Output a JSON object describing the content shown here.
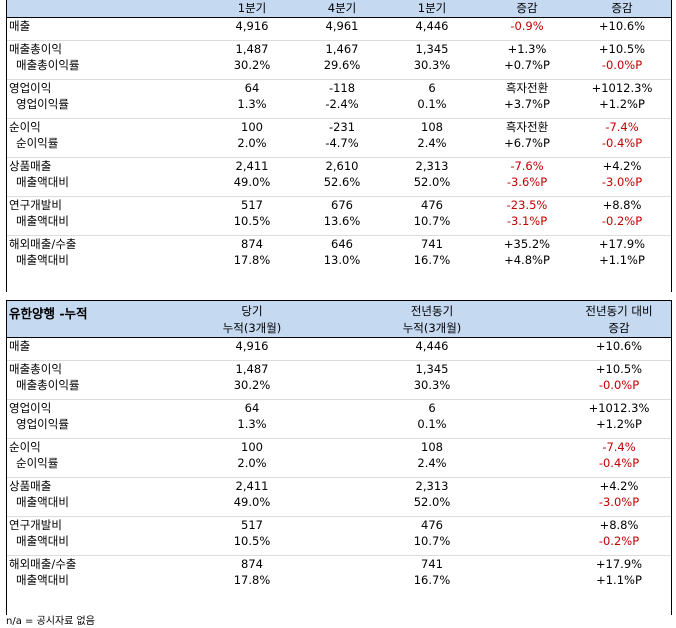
{
  "quarterly": {
    "headers": [
      "1분기",
      "4분기",
      "1분기",
      "증감",
      "증감"
    ],
    "rows": [
      {
        "label": "매출",
        "sub": false,
        "v": [
          "4,916",
          "4,961",
          "4,446",
          "-0.9%",
          "+10.6%"
        ],
        "neg": [
          false,
          false,
          false,
          true,
          false
        ]
      },
      {
        "label": "매출총이익",
        "sub": false,
        "v": [
          "1,487",
          "1,467",
          "1,345",
          "+1.3%",
          "+10.5%"
        ],
        "neg": [
          false,
          false,
          false,
          false,
          false
        ]
      },
      {
        "label": "매출총이익률",
        "sub": true,
        "v": [
          "30.2%",
          "29.6%",
          "30.3%",
          "+0.7%P",
          "-0.0%P"
        ],
        "neg": [
          false,
          false,
          false,
          false,
          true
        ]
      },
      {
        "label": "영업이익",
        "sub": false,
        "v": [
          "64",
          "-118",
          "6",
          "흑자전환",
          "+1012.3%"
        ],
        "neg": [
          false,
          false,
          false,
          false,
          false
        ]
      },
      {
        "label": "영업이익률",
        "sub": true,
        "v": [
          "1.3%",
          "-2.4%",
          "0.1%",
          "+3.7%P",
          "+1.2%P"
        ],
        "neg": [
          false,
          false,
          false,
          false,
          false
        ]
      },
      {
        "label": "순이익",
        "sub": false,
        "v": [
          "100",
          "-231",
          "108",
          "흑자전환",
          "-7.4%"
        ],
        "neg": [
          false,
          false,
          false,
          false,
          true
        ]
      },
      {
        "label": "순이익률",
        "sub": true,
        "v": [
          "2.0%",
          "-4.7%",
          "2.4%",
          "+6.7%P",
          "-0.4%P"
        ],
        "neg": [
          false,
          false,
          false,
          false,
          true
        ]
      },
      {
        "label": "상품매출",
        "sub": false,
        "v": [
          "2,411",
          "2,610",
          "2,313",
          "-7.6%",
          "+4.2%"
        ],
        "neg": [
          false,
          false,
          false,
          true,
          false
        ]
      },
      {
        "label": "매출액대비",
        "sub": true,
        "v": [
          "49.0%",
          "52.6%",
          "52.0%",
          "-3.6%P",
          "-3.0%P"
        ],
        "neg": [
          false,
          false,
          false,
          true,
          true
        ]
      },
      {
        "label": "연구개발비",
        "sub": false,
        "v": [
          "517",
          "676",
          "476",
          "-23.5%",
          "+8.8%"
        ],
        "neg": [
          false,
          false,
          false,
          true,
          false
        ]
      },
      {
        "label": "매출액대비",
        "sub": true,
        "v": [
          "10.5%",
          "13.6%",
          "10.7%",
          "-3.1%P",
          "-0.2%P"
        ],
        "neg": [
          false,
          false,
          false,
          true,
          true
        ]
      },
      {
        "label": "해외매출/수출",
        "sub": false,
        "v": [
          "874",
          "646",
          "741",
          "+35.2%",
          "+17.9%"
        ],
        "neg": [
          false,
          false,
          false,
          false,
          false
        ]
      },
      {
        "label": "매출액대비",
        "sub": true,
        "v": [
          "17.8%",
          "13.0%",
          "16.7%",
          "+4.8%P",
          "+1.1%P"
        ],
        "neg": [
          false,
          false,
          false,
          false,
          false
        ]
      }
    ]
  },
  "cumulative": {
    "title": "유한양행 -누적",
    "headers_line1": [
      "당기",
      "전년동기",
      "전년동기 대비"
    ],
    "headers_line2": [
      "누적(3개월)",
      "누적(3개월)",
      "증감"
    ],
    "rows": [
      {
        "label": "매출",
        "sub": false,
        "v": [
          "4,916",
          "4,446",
          "+10.6%"
        ],
        "neg": [
          false,
          false,
          false
        ]
      },
      {
        "label": "매출총이익",
        "sub": false,
        "v": [
          "1,487",
          "1,345",
          "+10.5%"
        ],
        "neg": [
          false,
          false,
          false
        ]
      },
      {
        "label": "매출총이익률",
        "sub": true,
        "v": [
          "30.2%",
          "30.3%",
          "-0.0%P"
        ],
        "neg": [
          false,
          false,
          true
        ]
      },
      {
        "label": "영업이익",
        "sub": false,
        "v": [
          "64",
          "6",
          "+1012.3%"
        ],
        "neg": [
          false,
          false,
          false
        ]
      },
      {
        "label": "영업이익률",
        "sub": true,
        "v": [
          "1.3%",
          "0.1%",
          "+1.2%P"
        ],
        "neg": [
          false,
          false,
          false
        ]
      },
      {
        "label": "순이익",
        "sub": false,
        "v": [
          "100",
          "108",
          "-7.4%"
        ],
        "neg": [
          false,
          false,
          true
        ]
      },
      {
        "label": "순이익률",
        "sub": true,
        "v": [
          "2.0%",
          "2.4%",
          "-0.4%P"
        ],
        "neg": [
          false,
          false,
          true
        ]
      },
      {
        "label": "상품매출",
        "sub": false,
        "v": [
          "2,411",
          "2,313",
          "+4.2%"
        ],
        "neg": [
          false,
          false,
          false
        ]
      },
      {
        "label": "매출액대비",
        "sub": true,
        "v": [
          "49.0%",
          "52.0%",
          "-3.0%P"
        ],
        "neg": [
          false,
          false,
          true
        ]
      },
      {
        "label": "연구개발비",
        "sub": false,
        "v": [
          "517",
          "476",
          "+8.8%"
        ],
        "neg": [
          false,
          false,
          false
        ]
      },
      {
        "label": "매출액대비",
        "sub": true,
        "v": [
          "10.5%",
          "10.7%",
          "-0.2%P"
        ],
        "neg": [
          false,
          false,
          true
        ]
      },
      {
        "label": "해외매출/수출",
        "sub": false,
        "v": [
          "874",
          "741",
          "+17.9%"
        ],
        "neg": [
          false,
          false,
          false
        ]
      },
      {
        "label": "매출액대비",
        "sub": true,
        "v": [
          "17.8%",
          "16.7%",
          "+1.1%P"
        ],
        "neg": [
          false,
          false,
          false
        ]
      }
    ]
  },
  "footnote": "n/a = 공시자료 없음"
}
